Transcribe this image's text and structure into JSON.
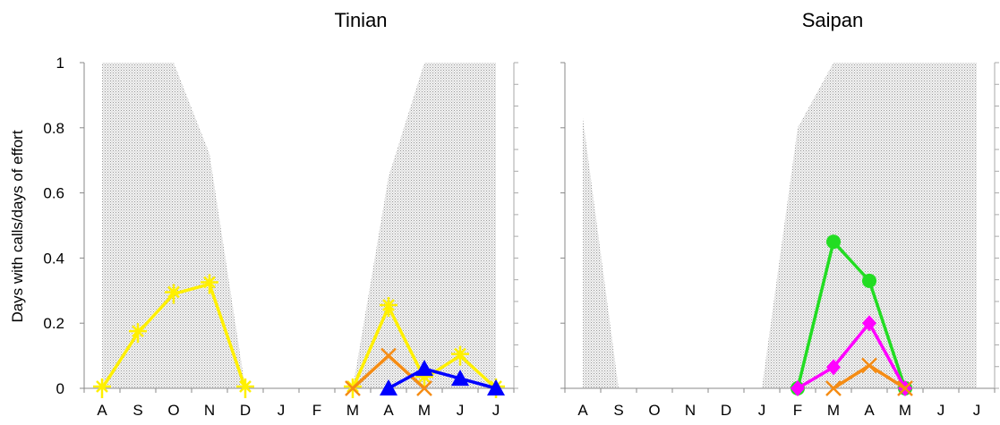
{
  "chart_data": {
    "type": "line",
    "ylabel": "Days with calls/days of effort",
    "ylim": [
      0,
      1
    ],
    "yticks": [
      "0",
      "0.2",
      "0.4",
      "0.6",
      "0.8",
      "1"
    ],
    "panels": [
      {
        "title": "Tinian",
        "categories": [
          "A",
          "S",
          "O",
          "N",
          "D",
          "J",
          "F",
          "M",
          "A",
          "M",
          "J",
          "J"
        ],
        "effort_shading": [
          1,
          1,
          1,
          0.72,
          0,
          0,
          0,
          0,
          0.65,
          1,
          1,
          1
        ],
        "series": [
          {
            "color": "#FFF000",
            "marker": "star",
            "values": [
              0,
              0.17,
              0.29,
              0.32,
              0,
              null,
              null,
              0,
              0.25,
              0.03,
              0.1,
              0
            ]
          },
          {
            "color": "#F58C14",
            "marker": "x",
            "values": [
              null,
              null,
              null,
              null,
              null,
              null,
              null,
              0,
              0.1,
              0,
              null,
              null
            ]
          },
          {
            "color": "#0000FF",
            "marker": "triangle",
            "values": [
              null,
              null,
              null,
              null,
              null,
              null,
              null,
              null,
              0,
              0.06,
              0.03,
              0
            ]
          }
        ]
      },
      {
        "title": "Saipan",
        "categories": [
          "A",
          "S",
          "O",
          "N",
          "D",
          "J",
          "F",
          "M",
          "A",
          "M",
          "J",
          "J"
        ],
        "effort_shading": [
          0.83,
          0,
          0,
          0,
          0,
          0,
          0.8,
          1,
          1,
          1,
          1,
          1
        ],
        "series": [
          {
            "color": "#22DD22",
            "marker": "circle",
            "values": [
              null,
              null,
              null,
              null,
              null,
              null,
              0,
              0.45,
              0.33,
              0,
              null,
              null
            ]
          },
          {
            "color": "#FF00FF",
            "marker": "diamond",
            "values": [
              null,
              null,
              null,
              null,
              null,
              null,
              0,
              0.065,
              0.2,
              0,
              null,
              null
            ]
          },
          {
            "color": "#F58C14",
            "marker": "x",
            "values": [
              null,
              null,
              null,
              null,
              null,
              null,
              null,
              0,
              0.07,
              0,
              null,
              null
            ]
          }
        ]
      }
    ]
  }
}
